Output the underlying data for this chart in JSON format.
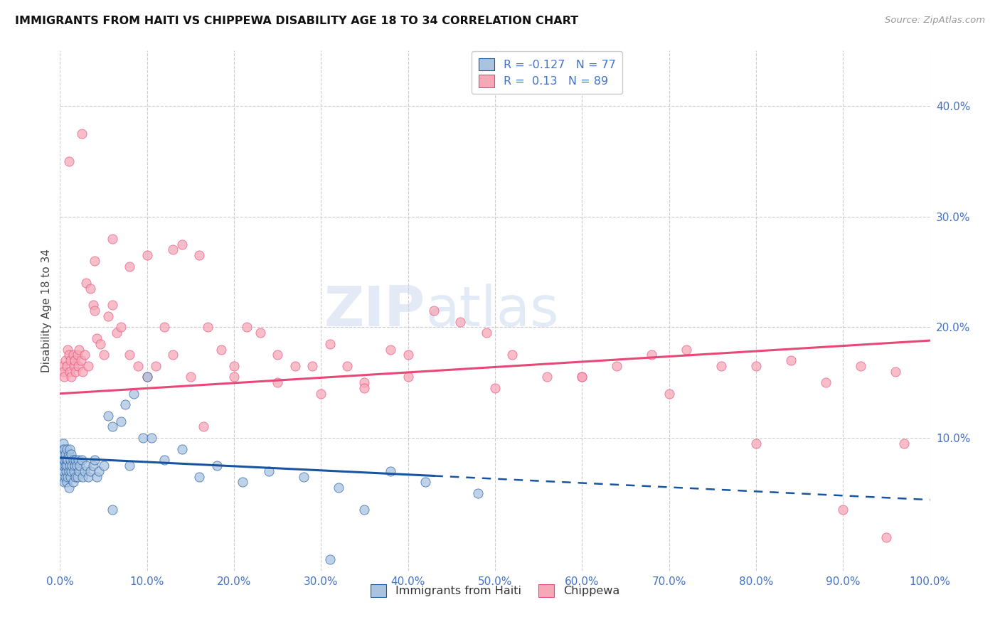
{
  "title": "IMMIGRANTS FROM HAITI VS CHIPPEWA DISABILITY AGE 18 TO 34 CORRELATION CHART",
  "source": "Source: ZipAtlas.com",
  "ylabel": "Disability Age 18 to 34",
  "xlim": [
    0.0,
    1.0
  ],
  "ylim": [
    -0.02,
    0.45
  ],
  "xticks": [
    0.0,
    0.1,
    0.2,
    0.3,
    0.4,
    0.5,
    0.6,
    0.7,
    0.8,
    0.9,
    1.0
  ],
  "xticklabels": [
    "0.0%",
    "10.0%",
    "20.0%",
    "30.0%",
    "40.0%",
    "50.0%",
    "60.0%",
    "70.0%",
    "80.0%",
    "90.0%",
    "100.0%"
  ],
  "yticks_left": [],
  "yticks_right": [
    0.1,
    0.2,
    0.3,
    0.4
  ],
  "yticklabels_right": [
    "10.0%",
    "20.0%",
    "30.0%",
    "40.0%"
  ],
  "haiti_R": -0.127,
  "haiti_N": 77,
  "chippewa_R": 0.13,
  "chippewa_N": 89,
  "haiti_color": "#aac4e0",
  "chippewa_color": "#f5a8b8",
  "haiti_line_color": "#1855a0",
  "chippewa_line_color": "#e84878",
  "haiti_line_intercept": 0.082,
  "haiti_line_slope": -0.038,
  "haiti_line_solid_end": 0.43,
  "chippewa_line_intercept": 0.14,
  "chippewa_line_slope": 0.048,
  "haiti_scatter_x": [
    0.002,
    0.002,
    0.003,
    0.003,
    0.003,
    0.004,
    0.004,
    0.004,
    0.004,
    0.005,
    0.005,
    0.005,
    0.006,
    0.006,
    0.006,
    0.007,
    0.007,
    0.008,
    0.008,
    0.008,
    0.009,
    0.009,
    0.01,
    0.01,
    0.01,
    0.011,
    0.011,
    0.012,
    0.012,
    0.013,
    0.013,
    0.014,
    0.015,
    0.015,
    0.016,
    0.017,
    0.018,
    0.018,
    0.019,
    0.02,
    0.021,
    0.022,
    0.023,
    0.025,
    0.026,
    0.028,
    0.03,
    0.032,
    0.035,
    0.038,
    0.04,
    0.042,
    0.045,
    0.05,
    0.055,
    0.06,
    0.07,
    0.075,
    0.085,
    0.095,
    0.105,
    0.12,
    0.14,
    0.16,
    0.18,
    0.21,
    0.24,
    0.28,
    0.32,
    0.38,
    0.42,
    0.48,
    0.31,
    0.35,
    0.06,
    0.08,
    0.1
  ],
  "haiti_scatter_y": [
    0.075,
    0.08,
    0.065,
    0.085,
    0.09,
    0.07,
    0.075,
    0.085,
    0.095,
    0.06,
    0.08,
    0.09,
    0.065,
    0.075,
    0.085,
    0.07,
    0.08,
    0.06,
    0.075,
    0.09,
    0.065,
    0.08,
    0.055,
    0.07,
    0.085,
    0.075,
    0.09,
    0.065,
    0.08,
    0.07,
    0.085,
    0.075,
    0.06,
    0.08,
    0.07,
    0.075,
    0.065,
    0.08,
    0.075,
    0.065,
    0.08,
    0.07,
    0.075,
    0.08,
    0.065,
    0.07,
    0.075,
    0.065,
    0.07,
    0.075,
    0.08,
    0.065,
    0.07,
    0.075,
    0.12,
    0.11,
    0.115,
    0.13,
    0.14,
    0.1,
    0.1,
    0.08,
    0.09,
    0.065,
    0.075,
    0.06,
    0.07,
    0.065,
    0.055,
    0.07,
    0.06,
    0.05,
    -0.01,
    0.035,
    0.035,
    0.075,
    0.155
  ],
  "chippewa_scatter_x": [
    0.003,
    0.004,
    0.005,
    0.006,
    0.008,
    0.009,
    0.01,
    0.011,
    0.012,
    0.013,
    0.015,
    0.016,
    0.017,
    0.018,
    0.02,
    0.021,
    0.022,
    0.024,
    0.026,
    0.028,
    0.03,
    0.032,
    0.035,
    0.038,
    0.04,
    0.042,
    0.046,
    0.05,
    0.055,
    0.06,
    0.065,
    0.07,
    0.08,
    0.09,
    0.1,
    0.11,
    0.12,
    0.13,
    0.14,
    0.15,
    0.16,
    0.17,
    0.185,
    0.2,
    0.215,
    0.23,
    0.25,
    0.27,
    0.29,
    0.31,
    0.33,
    0.35,
    0.38,
    0.4,
    0.43,
    0.46,
    0.49,
    0.52,
    0.56,
    0.6,
    0.64,
    0.68,
    0.72,
    0.76,
    0.8,
    0.84,
    0.88,
    0.92,
    0.96,
    0.01,
    0.025,
    0.04,
    0.06,
    0.08,
    0.1,
    0.13,
    0.165,
    0.2,
    0.25,
    0.3,
    0.35,
    0.4,
    0.5,
    0.6,
    0.7,
    0.8,
    0.9,
    0.95,
    0.97
  ],
  "chippewa_scatter_y": [
    0.165,
    0.16,
    0.155,
    0.17,
    0.165,
    0.18,
    0.175,
    0.16,
    0.17,
    0.155,
    0.175,
    0.165,
    0.17,
    0.16,
    0.175,
    0.165,
    0.18,
    0.17,
    0.16,
    0.175,
    0.24,
    0.165,
    0.235,
    0.22,
    0.215,
    0.19,
    0.185,
    0.175,
    0.21,
    0.22,
    0.195,
    0.2,
    0.175,
    0.165,
    0.155,
    0.165,
    0.2,
    0.27,
    0.275,
    0.155,
    0.265,
    0.2,
    0.18,
    0.165,
    0.2,
    0.195,
    0.175,
    0.165,
    0.165,
    0.185,
    0.165,
    0.15,
    0.18,
    0.175,
    0.215,
    0.205,
    0.195,
    0.175,
    0.155,
    0.155,
    0.165,
    0.175,
    0.18,
    0.165,
    0.165,
    0.17,
    0.15,
    0.165,
    0.16,
    0.35,
    0.375,
    0.26,
    0.28,
    0.255,
    0.265,
    0.175,
    0.11,
    0.155,
    0.15,
    0.14,
    0.145,
    0.155,
    0.145,
    0.155,
    0.14,
    0.095,
    0.035,
    0.01,
    0.095
  ],
  "watermark_zip": "ZIP",
  "watermark_atlas": "atlas",
  "tick_color": "#4472c4"
}
